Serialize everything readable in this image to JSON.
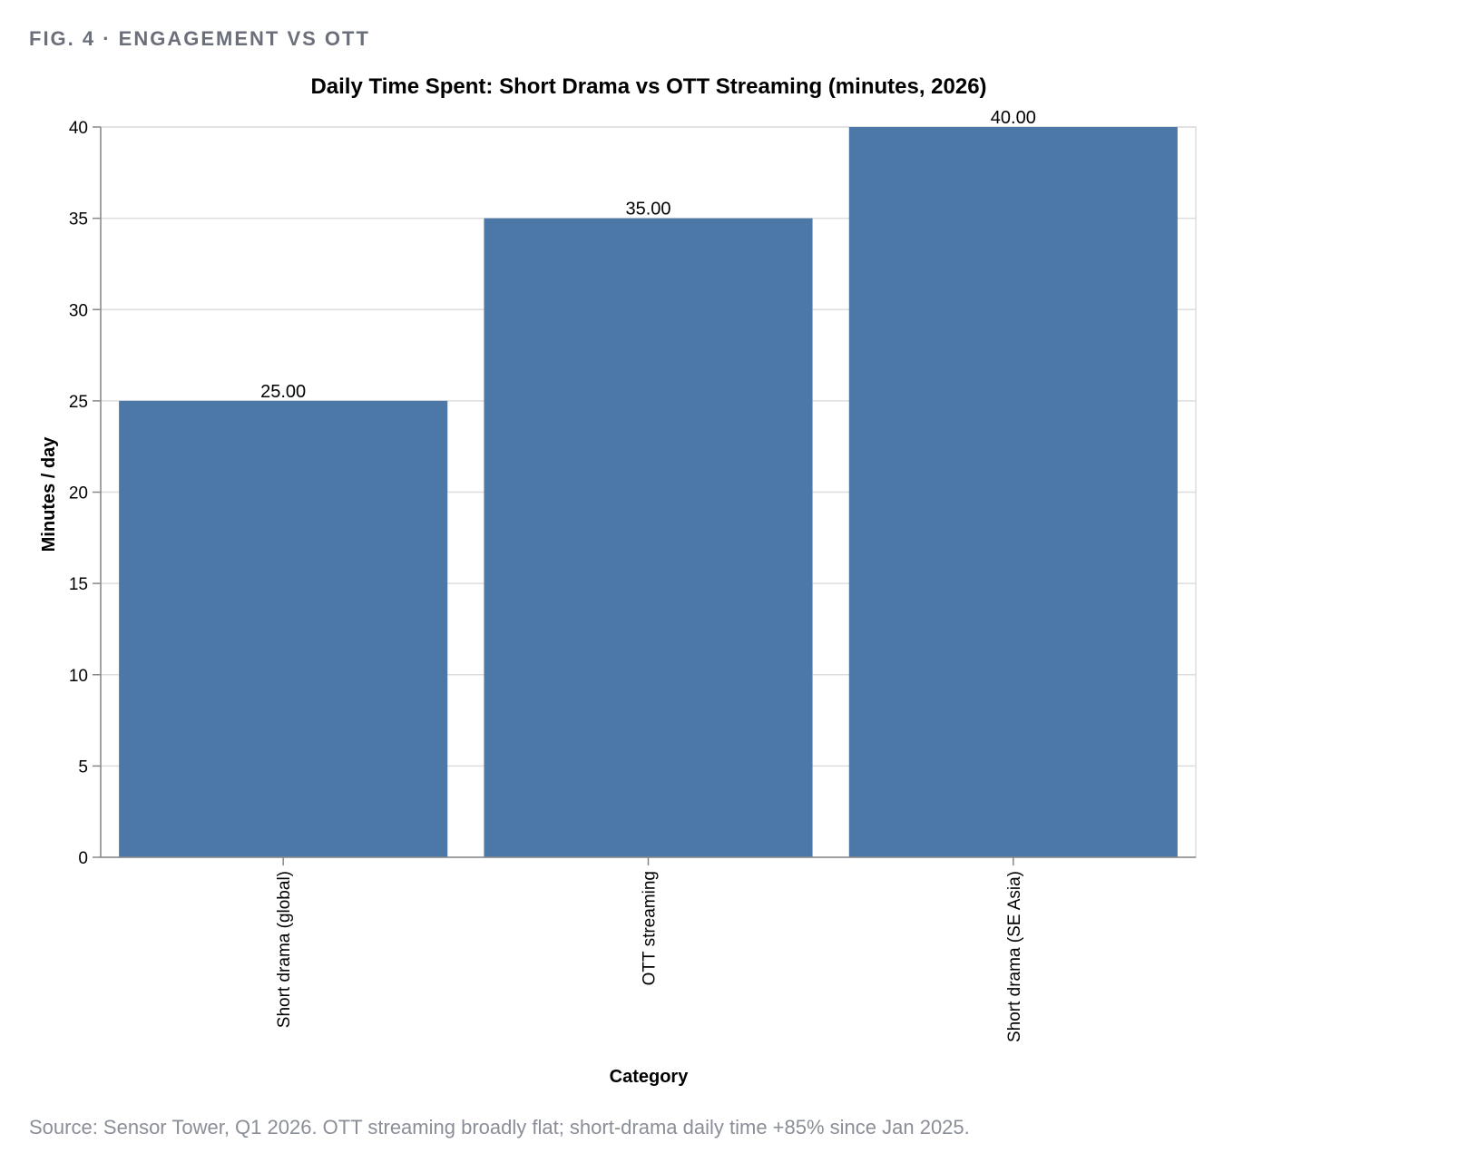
{
  "figure": {
    "label": "FIG. 4 · ENGAGEMENT VS OTT",
    "source": "Source: Sensor Tower, Q1 2026. OTT streaming broadly flat; short-drama daily time +85% since Jan 2025."
  },
  "chart_data": {
    "type": "bar",
    "title": "Daily Time Spent: Short Drama vs OTT Streaming (minutes, 2026)",
    "xlabel": "Category",
    "ylabel": "Minutes / day",
    "categories": [
      "Short drama (global)",
      "OTT streaming",
      "Short drama (SE Asia)"
    ],
    "values": [
      25,
      35,
      40
    ],
    "value_labels": [
      "25.00",
      "35.00",
      "40.00"
    ],
    "ylim": [
      0,
      40
    ],
    "yticks": [
      0,
      5,
      10,
      15,
      20,
      25,
      30,
      35,
      40
    ],
    "grid": true,
    "bar_color": "#4c78a8"
  }
}
